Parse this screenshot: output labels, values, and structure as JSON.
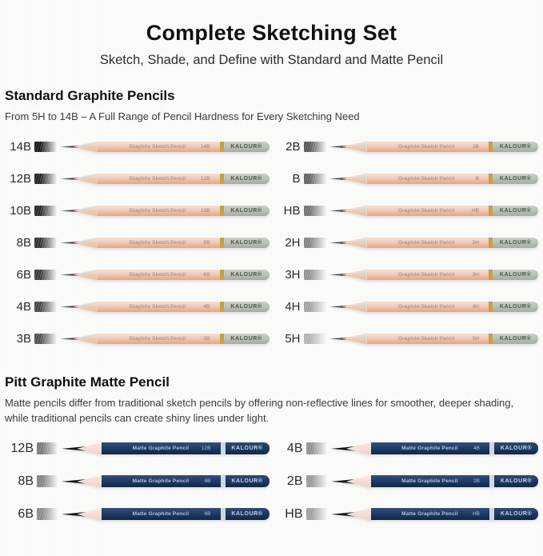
{
  "header": {
    "title": "Complete Sketching Set",
    "subtitle": "Sketch, Shade, and Define with Standard and Matte Pencil"
  },
  "standard_section": {
    "heading": "Standard Graphite Pencils",
    "description": "From 5H to 14B – A Full Range of Pencil Hardness for Every Sketching Need",
    "pencil_body_label": "Graphite Sketch Pencil",
    "brand": "KALOUR®",
    "colors": {
      "wood_light": "#f5e3d3",
      "wood_dark": "#e2bfa5",
      "lead": "#3c3c3c",
      "body_light": "#f9dfcf",
      "body": "#f0c6b0",
      "body_dark": "#dfa68a",
      "band": "#c69e52",
      "cap_light": "#c9d1c7",
      "cap": "#b6c0b4",
      "cap_dark": "#a3ada1",
      "cap_text": "#4e544c",
      "print_text": "#90857c"
    },
    "left_column": [
      {
        "grade": "14B",
        "swatch": "#171717"
      },
      {
        "grade": "12B",
        "swatch": "#1f1f1f"
      },
      {
        "grade": "10B",
        "swatch": "#272727"
      },
      {
        "grade": "8B",
        "swatch": "#303030"
      },
      {
        "grade": "6B",
        "swatch": "#3a3a3a"
      },
      {
        "grade": "4B",
        "swatch": "#454545"
      },
      {
        "grade": "3B",
        "swatch": "#4e4e4e"
      }
    ],
    "right_column": [
      {
        "grade": "2B",
        "swatch": "#565656"
      },
      {
        "grade": "B",
        "swatch": "#636363"
      },
      {
        "grade": "HB",
        "swatch": "#707070"
      },
      {
        "grade": "2H",
        "swatch": "#828282"
      },
      {
        "grade": "3H",
        "swatch": "#929292"
      },
      {
        "grade": "4H",
        "swatch": "#a2a2a2"
      },
      {
        "grade": "5H",
        "swatch": "#b2b2b2"
      }
    ]
  },
  "matte_section": {
    "heading": "Pitt Graphite Matte Pencil",
    "description": "Matte pencils differ from traditional sketch pencils by offering non-reflective lines for smoother, deeper shading, while traditional pencils can create shiny lines under light.",
    "pencil_body_label": "Matte Graphite Pencil",
    "brand": "KALOUR®",
    "colors": {
      "wood_light": "#f9e9e3",
      "wood_dark": "#efd2c8",
      "lead": "#101010",
      "body_light": "#32507c",
      "body": "#1e3a64",
      "body_dark": "#142744",
      "band": "#ccd8e8",
      "cap_light": "#2e4b76",
      "cap": "#1c3760",
      "cap_dark": "#132743",
      "cap_text": "#c7d3e6",
      "print_text": "#b4c3dc"
    },
    "left_column": [
      {
        "grade": "12B",
        "swatch": "#767676"
      },
      {
        "grade": "8B",
        "swatch": "#828282"
      },
      {
        "grade": "6B",
        "swatch": "#8a8a8a"
      }
    ],
    "right_column": [
      {
        "grade": "4B",
        "swatch": "#909090"
      },
      {
        "grade": "2B",
        "swatch": "#989898"
      },
      {
        "grade": "HB",
        "swatch": "#9e9e9e"
      }
    ]
  }
}
